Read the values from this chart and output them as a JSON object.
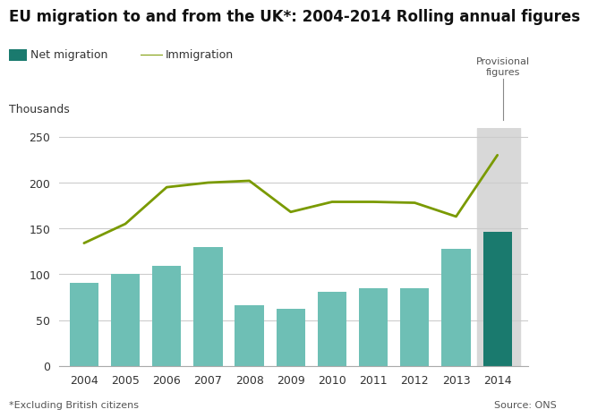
{
  "title": "EU migration to and from the UK*: 2004-2014 Rolling annual figures",
  "ylabel": "Thousands",
  "years": [
    2004,
    2005,
    2006,
    2007,
    2008,
    2009,
    2010,
    2011,
    2012,
    2013,
    2014
  ],
  "net_migration": [
    91,
    100,
    109,
    130,
    66,
    62,
    81,
    85,
    85,
    128,
    146
  ],
  "immigration": [
    134,
    155,
    195,
    200,
    202,
    168,
    179,
    179,
    178,
    163,
    230
  ],
  "bar_color_normal": "#6ebfb5",
  "bar_color_provisional": "#1a7a6e",
  "line_color": "#7a9a01",
  "provisional_year": 2014,
  "provisional_shade_color": "#d8d8d8",
  "ylim": [
    0,
    260
  ],
  "yticks": [
    0,
    50,
    100,
    150,
    200,
    250
  ],
  "background_color": "#ffffff",
  "title_fontsize": 12,
  "legend_net_label": "Net migration",
  "legend_imm_label": "Immigration",
  "footnote_left": "*Excluding British citizens",
  "footnote_right": "Source: ONS",
  "provisional_label": "Provisional\nfigures"
}
